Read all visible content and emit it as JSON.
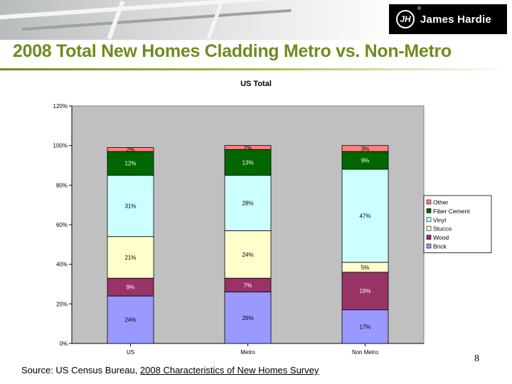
{
  "header": {
    "logo_mark": "JH",
    "logo_text": "James Hardie",
    "logo_reg": "®",
    "page_title": "2008 Total New Homes Cladding Metro vs. Non-Metro"
  },
  "footer": {
    "page_number": "8",
    "source_prefix": "Source:  US Census Bureau, ",
    "source_link": "2008 Characteristics of New Homes Survey"
  },
  "colors": {
    "title_green": "#6f8b1f",
    "plot_bg": "#c0c0c0"
  },
  "chart_data": {
    "type": "bar",
    "stacked": true,
    "title": "US Total",
    "xlabel": "",
    "ylabel": "",
    "categories": [
      "US",
      "Metro",
      "Non Metro"
    ],
    "ylim": [
      0,
      120
    ],
    "yticks": [
      "0%",
      "20%",
      "40%",
      "60%",
      "80%",
      "100%",
      "120%"
    ],
    "grid": false,
    "legend_position": "right",
    "series": [
      {
        "name": "Brick",
        "color": "#9999ff",
        "values": [
          24,
          26,
          17
        ],
        "labels": [
          "24%",
          "26%",
          "17%"
        ]
      },
      {
        "name": "Wood",
        "color": "#993366",
        "values": [
          9,
          7,
          19
        ],
        "labels": [
          "9%",
          "7%",
          "19%"
        ]
      },
      {
        "name": "Stucco",
        "color": "#ffffcc",
        "values": [
          21,
          24,
          5
        ],
        "labels": [
          "21%",
          "24%",
          "5%"
        ]
      },
      {
        "name": "Vinyl",
        "color": "#ccffff",
        "values": [
          31,
          28,
          47
        ],
        "labels": [
          "31%",
          "28%",
          "47%"
        ]
      },
      {
        "name": "Fiber Cement",
        "color": "#006600",
        "values": [
          12,
          13,
          9
        ],
        "labels": [
          "12%",
          "13%",
          "9%"
        ]
      },
      {
        "name": "Other",
        "color": "#ff8080",
        "values": [
          2,
          2,
          3
        ],
        "labels": [
          "2%",
          "2%",
          "3%"
        ]
      }
    ]
  }
}
